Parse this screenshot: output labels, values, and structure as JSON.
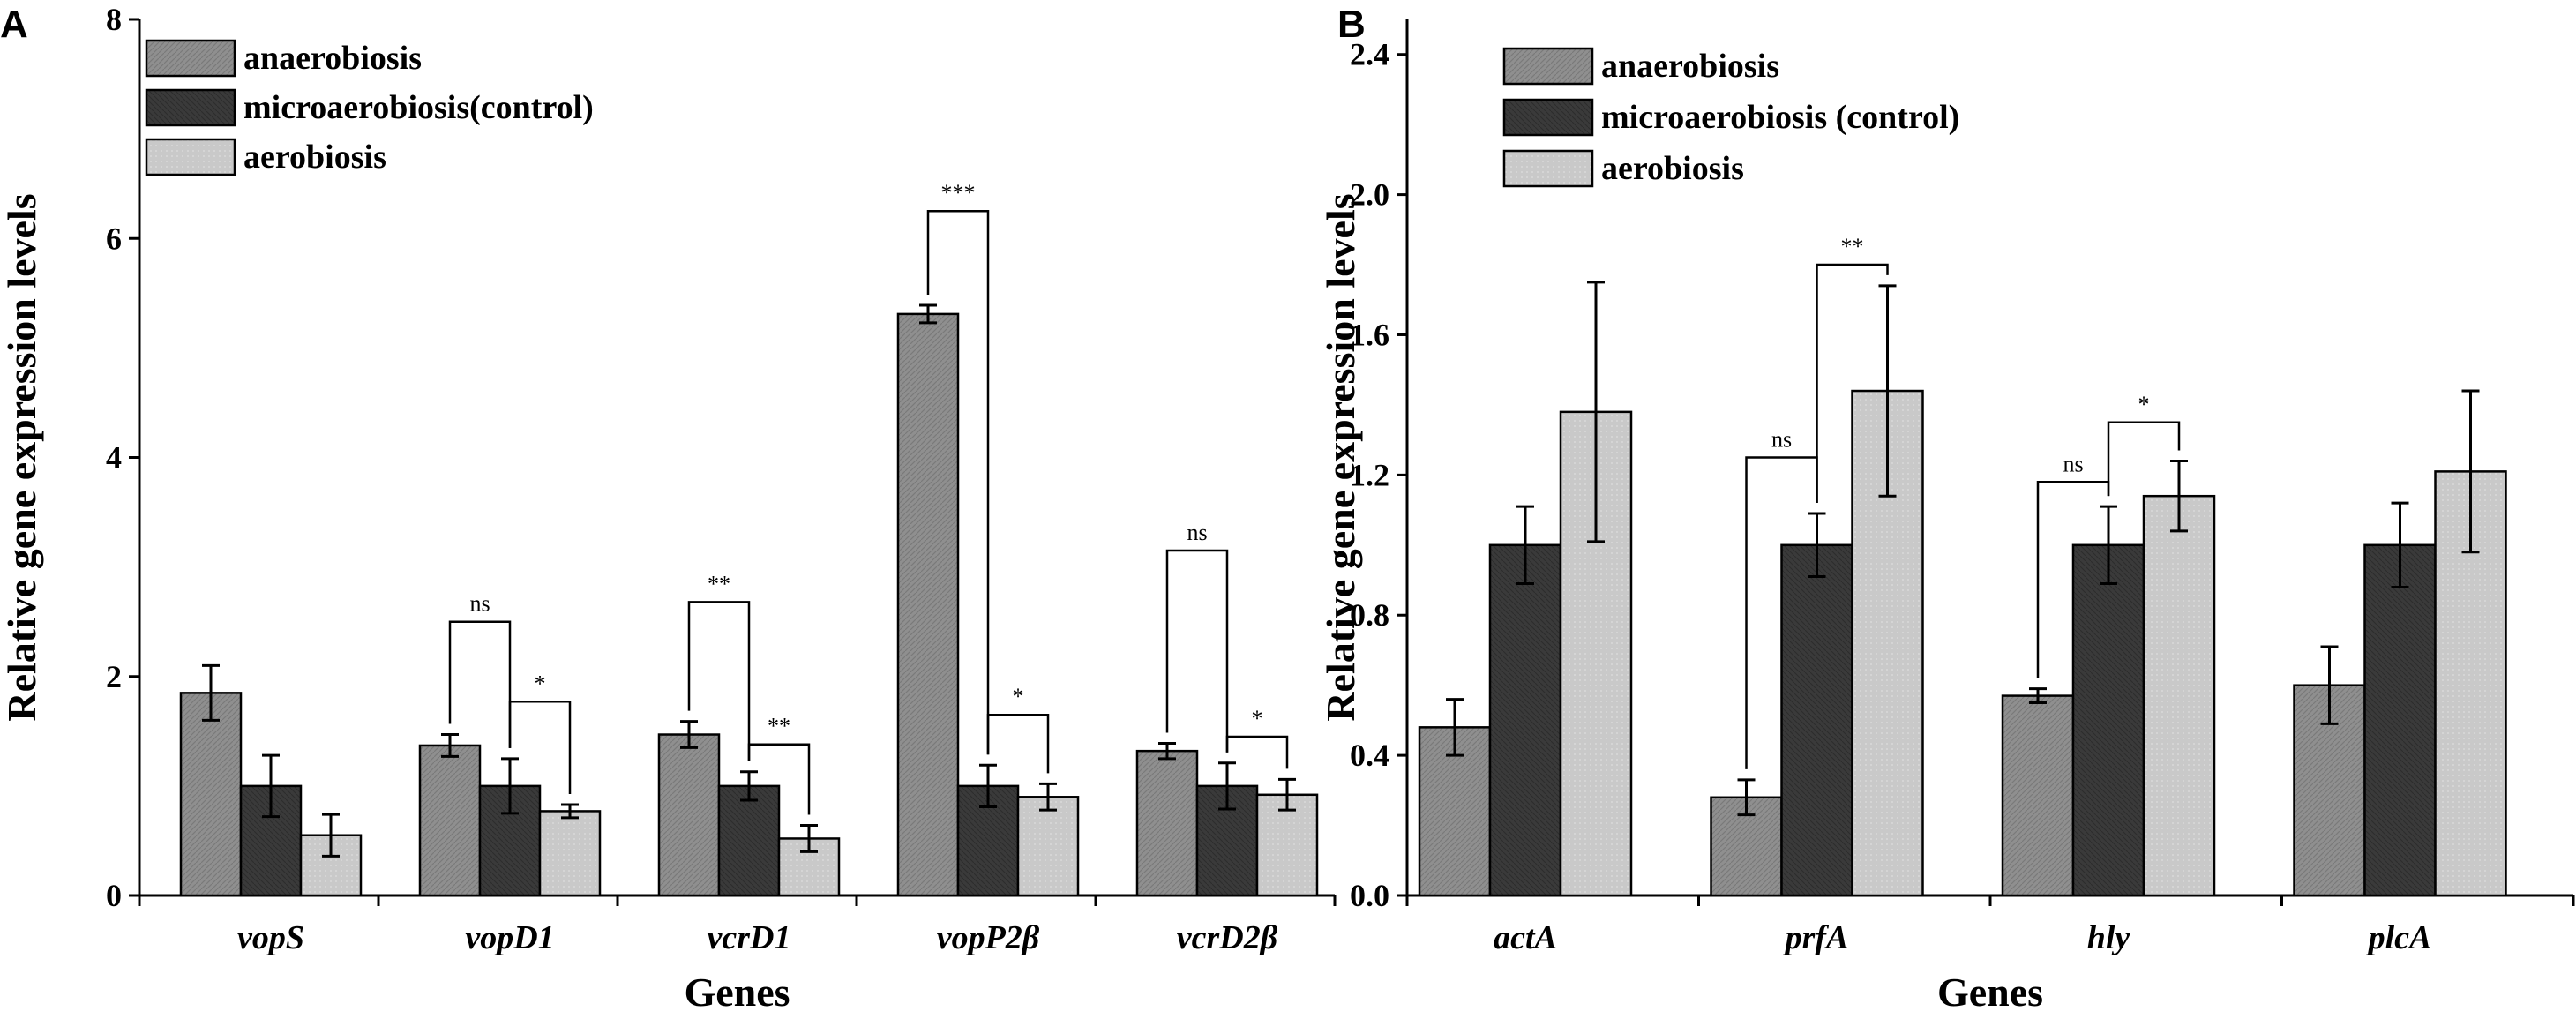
{
  "colors": {
    "anaerobiosis": "#8f8f8f",
    "microaerobiosis": "#3a3a3a",
    "aerobiosis": "#c9c9c9",
    "axis": "#000000"
  },
  "chart_data": [
    {
      "panel": "A",
      "type": "bar",
      "xlabel": "Genes",
      "ylabel": "Relative gene expression levels",
      "ylim": [
        0,
        8
      ],
      "yticks": [
        "0",
        "2",
        "4",
        "6",
        "8"
      ],
      "ytick_values": [
        0,
        2,
        4,
        6,
        8
      ],
      "categories": [
        "vopS",
        "vopD1",
        "vcrD1",
        "vopP2β",
        "vcrD2β"
      ],
      "series": [
        {
          "name": "anaerobiosis",
          "key": "anaerobiosis",
          "values": [
            1.85,
            1.37,
            1.47,
            5.31,
            1.32
          ],
          "errors": [
            0.25,
            0.1,
            0.12,
            0.08,
            0.07
          ]
        },
        {
          "name": "microaerobiosis(control)",
          "key": "microaerobiosis",
          "values": [
            1.0,
            1.0,
            1.0,
            1.0,
            1.0
          ],
          "errors": [
            0.28,
            0.25,
            0.13,
            0.19,
            0.21
          ]
        },
        {
          "name": "aerobiosis",
          "key": "aerobiosis",
          "values": [
            0.55,
            0.77,
            0.52,
            0.9,
            0.92
          ],
          "errors": [
            0.19,
            0.06,
            0.12,
            0.12,
            0.14
          ]
        }
      ],
      "legend": [
        "anaerobiosis",
        "microaerobiosis(control)",
        "aerobiosis"
      ],
      "significance": [
        {
          "category": 1,
          "from": 0,
          "to": 1,
          "label": "ns",
          "level": 2.5
        },
        {
          "category": 1,
          "from": 1,
          "to": 2,
          "label": "*",
          "level": 1.77
        },
        {
          "category": 2,
          "from": 0,
          "to": 1,
          "label": "**",
          "level": 2.68
        },
        {
          "category": 2,
          "from": 1,
          "to": 2,
          "label": "**",
          "level": 1.38
        },
        {
          "category": 3,
          "from": 0,
          "to": 1,
          "label": "***",
          "level": 6.25
        },
        {
          "category": 3,
          "from": 1,
          "to": 2,
          "label": "*",
          "level": 1.65
        },
        {
          "category": 4,
          "from": 0,
          "to": 1,
          "label": "ns",
          "level": 3.15
        },
        {
          "category": 4,
          "from": 1,
          "to": 2,
          "label": "*",
          "level": 1.45
        }
      ]
    },
    {
      "panel": "B",
      "type": "bar",
      "xlabel": "Genes",
      "ylabel": "Relative gene expression levels",
      "ylim": [
        0,
        2.5
      ],
      "yticks": [
        "0.0",
        "0.4",
        "0.8",
        "1.2",
        "1.6",
        "2.0",
        "2.4"
      ],
      "ytick_values": [
        0,
        0.4,
        0.8,
        1.2,
        1.6,
        2.0,
        2.4
      ],
      "categories": [
        "actA",
        "prfA",
        "hly",
        "plcA"
      ],
      "series": [
        {
          "name": "anaerobiosis",
          "key": "anaerobiosis",
          "values": [
            0.48,
            0.28,
            0.57,
            0.6
          ],
          "errors": [
            0.08,
            0.05,
            0.02,
            0.11
          ]
        },
        {
          "name": "microaerobiosis (control)",
          "key": "microaerobiosis",
          "values": [
            1.0,
            1.0,
            1.0,
            1.0
          ],
          "errors": [
            0.11,
            0.09,
            0.11,
            0.12
          ]
        },
        {
          "name": "aerobiosis",
          "key": "aerobiosis",
          "values": [
            1.38,
            1.44,
            1.14,
            1.21
          ],
          "errors": [
            0.37,
            0.3,
            0.1,
            0.23
          ]
        }
      ],
      "legend": [
        "anaerobiosis",
        "microaerobiosis (control)",
        "aerobiosis"
      ],
      "significance": [
        {
          "category": 1,
          "from": 0,
          "to": 1,
          "label": "ns",
          "level": 1.25
        },
        {
          "category": 1,
          "from": 1,
          "to": 2,
          "label": "**",
          "level": 1.8
        },
        {
          "category": 2,
          "from": 0,
          "to": 1,
          "label": "ns",
          "level": 1.18
        },
        {
          "category": 2,
          "from": 1,
          "to": 2,
          "label": "*",
          "level": 1.35
        }
      ]
    }
  ]
}
